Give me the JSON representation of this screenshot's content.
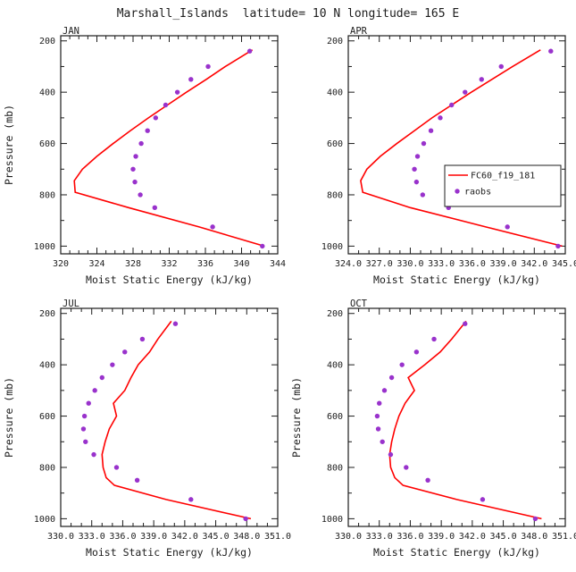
{
  "title": "Marshall_Islands  latitude= 10 N longitude= 165 E",
  "colors": {
    "axis": "#1c1c1c",
    "model": "#ff0000",
    "obs": "#9932cc"
  },
  "legend": {
    "model_label": "FC60_f19_181",
    "obs_label": "raobs"
  },
  "chart_data": {
    "type": "line",
    "title": "Marshall_Islands  latitude= 10 N longitude= 165 E",
    "xlabel": "Moist Static Energy (kJ/kg)",
    "ylabel": "Pressure (mb)",
    "ylim": [
      180,
      1030
    ],
    "yticks": [
      200,
      400,
      600,
      800,
      1000
    ],
    "y_minor_step": 100,
    "legend_position": "inside-right of APR panel",
    "grid": false,
    "panels": [
      {
        "month": "JAN",
        "xlim": [
          320,
          344
        ],
        "xticks": [
          320,
          324,
          328,
          332,
          336,
          340,
          344
        ],
        "tick_decimals": 0,
        "show_ylabel": true,
        "show_legend": false,
        "model": {
          "name": "FC60_f19_181",
          "points": [
            [
              235,
              341.2
            ],
            [
              300,
              338.2
            ],
            [
              350,
              336.1
            ],
            [
              400,
              333.9
            ],
            [
              450,
              331.8
            ],
            [
              500,
              329.7
            ],
            [
              550,
              327.7
            ],
            [
              600,
              325.8
            ],
            [
              650,
              324.0
            ],
            [
              700,
              322.4
            ],
            [
              745,
              321.5
            ],
            [
              790,
              321.6
            ],
            [
              850,
              327.5
            ],
            [
              925,
              335.3
            ],
            [
              1000,
              342.5
            ]
          ]
        },
        "obs": {
          "name": "raobs",
          "points": [
            [
              240,
              340.9
            ],
            [
              300,
              336.3
            ],
            [
              350,
              334.4
            ],
            [
              400,
              332.9
            ],
            [
              450,
              331.6
            ],
            [
              500,
              330.5
            ],
            [
              550,
              329.6
            ],
            [
              600,
              328.9
            ],
            [
              650,
              328.3
            ],
            [
              700,
              328.0
            ],
            [
              750,
              328.2
            ],
            [
              800,
              328.8
            ],
            [
              850,
              330.4
            ],
            [
              925,
              336.8
            ],
            [
              1000,
              342.3
            ]
          ]
        }
      },
      {
        "month": "APR",
        "xlim": [
          324,
          345
        ],
        "xticks": [
          324,
          327,
          330,
          333,
          336,
          339,
          342,
          345
        ],
        "tick_decimals": 1,
        "show_ylabel": false,
        "show_legend": true,
        "model": {
          "name": "FC60_f19_181",
          "points": [
            [
              235,
              342.6
            ],
            [
              300,
              339.9
            ],
            [
              350,
              337.9
            ],
            [
              400,
              335.9
            ],
            [
              450,
              334.0
            ],
            [
              500,
              332.1
            ],
            [
              550,
              330.4
            ],
            [
              600,
              328.7
            ],
            [
              650,
              327.1
            ],
            [
              700,
              325.8
            ],
            [
              745,
              325.2
            ],
            [
              790,
              325.4
            ],
            [
              850,
              330.0
            ],
            [
              925,
              337.3
            ],
            [
              1000,
              344.7
            ]
          ]
        },
        "obs": {
          "name": "raobs",
          "points": [
            [
              240,
              343.6
            ],
            [
              300,
              338.8
            ],
            [
              350,
              336.9
            ],
            [
              400,
              335.3
            ],
            [
              450,
              334.0
            ],
            [
              500,
              332.9
            ],
            [
              550,
              332.0
            ],
            [
              600,
              331.3
            ],
            [
              650,
              330.7
            ],
            [
              700,
              330.4
            ],
            [
              750,
              330.6
            ],
            [
              800,
              331.2
            ],
            [
              850,
              333.7
            ],
            [
              925,
              339.4
            ],
            [
              1000,
              344.3
            ]
          ]
        }
      },
      {
        "month": "JUL",
        "xlim": [
          330,
          351
        ],
        "xticks": [
          330,
          333,
          336,
          339,
          342,
          345,
          348,
          351
        ],
        "tick_decimals": 1,
        "show_ylabel": true,
        "show_legend": false,
        "model": {
          "name": "FC60_f19_181",
          "points": [
            [
              230,
              340.7
            ],
            [
              300,
              339.4
            ],
            [
              350,
              338.6
            ],
            [
              400,
              337.5
            ],
            [
              450,
              336.8
            ],
            [
              500,
              336.2
            ],
            [
              550,
              335.1
            ],
            [
              600,
              335.4
            ],
            [
              650,
              334.7
            ],
            [
              700,
              334.3
            ],
            [
              750,
              334.0
            ],
            [
              800,
              334.1
            ],
            [
              840,
              334.4
            ],
            [
              870,
              335.2
            ],
            [
              925,
              340.2
            ],
            [
              1000,
              348.4
            ]
          ]
        },
        "obs": {
          "name": "raobs",
          "points": [
            [
              240,
              341.1
            ],
            [
              300,
              337.9
            ],
            [
              350,
              336.2
            ],
            [
              400,
              335.0
            ],
            [
              450,
              334.0
            ],
            [
              500,
              333.3
            ],
            [
              550,
              332.7
            ],
            [
              600,
              332.3
            ],
            [
              650,
              332.2
            ],
            [
              700,
              332.4
            ],
            [
              750,
              333.2
            ],
            [
              800,
              335.4
            ],
            [
              850,
              337.4
            ],
            [
              925,
              342.6
            ],
            [
              1000,
              347.9
            ]
          ]
        }
      },
      {
        "month": "OCT",
        "xlim": [
          330,
          351
        ],
        "xticks": [
          330,
          333,
          336,
          339,
          342,
          345,
          348,
          351
        ],
        "tick_decimals": 1,
        "show_ylabel": true,
        "show_legend": false,
        "model": {
          "name": "FC60_f19_181",
          "points": [
            [
              230,
              341.4
            ],
            [
              300,
              340.0
            ],
            [
              350,
              338.9
            ],
            [
              400,
              337.4
            ],
            [
              450,
              335.8
            ],
            [
              500,
              336.4
            ],
            [
              550,
              335.5
            ],
            [
              600,
              334.9
            ],
            [
              650,
              334.5
            ],
            [
              700,
              334.2
            ],
            [
              750,
              334.0
            ],
            [
              800,
              334.1
            ],
            [
              840,
              334.5
            ],
            [
              870,
              335.3
            ],
            [
              925,
              340.5
            ],
            [
              1000,
              348.7
            ]
          ]
        },
        "obs": {
          "name": "raobs",
          "points": [
            [
              240,
              341.3
            ],
            [
              300,
              338.3
            ],
            [
              350,
              336.6
            ],
            [
              400,
              335.2
            ],
            [
              450,
              334.2
            ],
            [
              500,
              333.5
            ],
            [
              550,
              333.0
            ],
            [
              600,
              332.8
            ],
            [
              650,
              332.9
            ],
            [
              700,
              333.3
            ],
            [
              750,
              334.1
            ],
            [
              800,
              335.6
            ],
            [
              850,
              337.7
            ],
            [
              925,
              343.0
            ],
            [
              1000,
              348.1
            ]
          ]
        }
      }
    ]
  }
}
